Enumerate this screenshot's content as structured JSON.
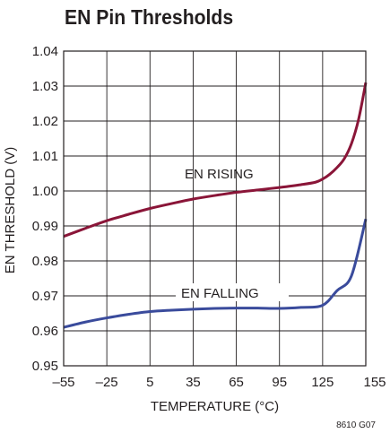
{
  "chart_data": {
    "type": "line",
    "title": "EN Pin Thresholds",
    "xlabel": "TEMPERATURE (°C)",
    "ylabel": "EN THRESHOLD (V)",
    "xlim": [
      -55,
      155
    ],
    "ylim": [
      0.95,
      1.04
    ],
    "x_ticks": [
      -55,
      -25,
      5,
      35,
      65,
      95,
      125,
      155
    ],
    "x_tick_labels": [
      "–55",
      "–25",
      "5",
      "35",
      "65",
      "95",
      "125",
      "155"
    ],
    "y_ticks": [
      0.95,
      0.96,
      0.97,
      0.98,
      0.99,
      1.0,
      1.01,
      1.02,
      1.03,
      1.04
    ],
    "y_tick_labels": [
      "0.95",
      "0.96",
      "0.97",
      "0.98",
      "0.99",
      "1.00",
      "1.01",
      "1.02",
      "1.03",
      "1.04"
    ],
    "grid": true,
    "legend": "none",
    "series": [
      {
        "name": "EN RISING",
        "color": "#8a1538",
        "x": [
          -55,
          -40,
          -25,
          -10,
          5,
          20,
          35,
          50,
          65,
          80,
          95,
          110,
          120,
          125,
          130,
          135,
          140,
          145,
          150,
          155
        ],
        "values": [
          0.987,
          0.9893,
          0.9915,
          0.9933,
          0.995,
          0.9964,
          0.9977,
          0.9987,
          0.9996,
          1.0003,
          1.001,
          1.0018,
          1.0025,
          1.0034,
          1.0048,
          1.0067,
          1.0092,
          1.0135,
          1.0205,
          1.031
        ]
      },
      {
        "name": "EN FALLING",
        "color": "#3a4b9c",
        "x": [
          -55,
          -40,
          -25,
          -10,
          5,
          20,
          35,
          50,
          65,
          80,
          95,
          110,
          125,
          135,
          145,
          155
        ],
        "values": [
          0.961,
          0.9625,
          0.9637,
          0.9647,
          0.9655,
          0.9659,
          0.9662,
          0.9664,
          0.9665,
          0.9665,
          0.9664,
          0.9667,
          0.9673,
          0.9715,
          0.9757,
          0.992
        ]
      }
    ]
  },
  "figure_id": "8610 G07"
}
